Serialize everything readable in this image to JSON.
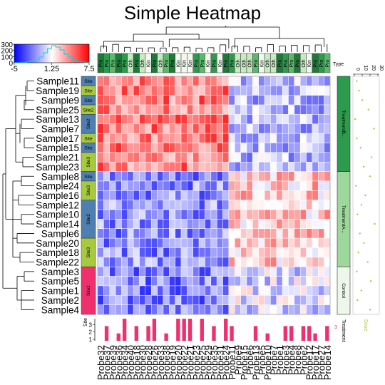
{
  "title": "Simple Heatmap",
  "colors": {
    "low": "#0000ff",
    "mid": "#ffffff",
    "high": "#ff0000"
  },
  "chart_data": {
    "type": "heatmap",
    "title": "Simple Heatmap",
    "color_key": {
      "ticks": [
        "-5",
        "1.25",
        "7.5"
      ],
      "hist_ticks": [
        "300",
        "200",
        "100",
        "0"
      ]
    },
    "columns": [
      "Probe32",
      "Probe37",
      "Probe39",
      "Probe36",
      "Probe34",
      "Probe40",
      "Probe18",
      "Probe30",
      "Probe28",
      "Probe26",
      "Probe33",
      "Probe38",
      "Probe19",
      "Probe20",
      "Probe22",
      "Probe21",
      "Probe23",
      "Probe25",
      "Probe29",
      "Probe35",
      "Probe31",
      "Probe24",
      "Probe11",
      "Probe9",
      "Probe15",
      "Probe6",
      "Probe13",
      "Probe5",
      "Probe10",
      "Probe7",
      "Probe1",
      "Probe3",
      "Probe4",
      "Probe8",
      "Probe2",
      "Probe12",
      "Probe17",
      "Probe27",
      "Probe14"
    ],
    "rows": [
      "Sample11",
      "Sample19",
      "Sample9",
      "Sample25",
      "Sample13",
      "Sample7",
      "Sample17",
      "Sample15",
      "Sample21",
      "Sample23",
      "Sample8",
      "Sample24",
      "Sample16",
      "Sample12",
      "Sample10",
      "Sample14",
      "Sample6",
      "Sample20",
      "Sample18",
      "Sample22",
      "Sample3",
      "Sample5",
      "Sample1",
      "Sample2",
      "Sample4"
    ],
    "column_type_labels": [
      "Pro",
      "Pro",
      "Pro",
      "Pro",
      "Pro",
      "Oth",
      "Pro",
      "Oth",
      "Kin",
      "Pro",
      "Oth",
      "Pro",
      "Pro",
      "Kin",
      "Kin",
      "Kin",
      "Pro",
      "Pro",
      "Kin",
      "Pro",
      "Kin",
      "Pro",
      "Pro",
      "Oth",
      "Oth",
      "Oth",
      "Pro",
      "Kin",
      "Oth",
      "Oth",
      "Pro",
      "Pro",
      "Pro",
      "Pro",
      "Oth",
      "Kin",
      "Pro",
      "Pro",
      "Pro"
    ],
    "type_label": "Type",
    "site_labels": {
      "group1": "Site",
      "group2": "Site",
      "group3": "Site",
      "group4": "Site2",
      "group5": "Site3",
      "group6": "Site2",
      "group7": "Site3",
      "group8": "Site1"
    },
    "treatment_labels": [
      "TreatmentB...",
      "TreatmentA...",
      "Control"
    ],
    "dose_axis_ticks": [
      "0",
      "10",
      "20",
      "30"
    ],
    "dose_values": [
      3,
      6,
      10,
      18,
      1,
      25,
      3,
      8,
      22,
      12,
      20,
      2,
      14,
      9,
      4,
      26,
      7,
      12,
      5,
      17,
      3,
      21,
      9,
      4,
      20
    ],
    "bottom_axis_labels": {
      "count_ticks": [
        "1",
        "2",
        "3"
      ],
      "site_label": "Site",
      "treatment_label": "Treatment",
      "dose_label": "Dose",
      "col_label_3": "3"
    },
    "column_bar_values": [
      0,
      2,
      0,
      1,
      3,
      0,
      2,
      0,
      2,
      3,
      0,
      1,
      0,
      3,
      3,
      3,
      0,
      3,
      0,
      2,
      0,
      3,
      2,
      0,
      0,
      0,
      2,
      0,
      1,
      0,
      0,
      2,
      2,
      0,
      2,
      2,
      1,
      0,
      2
    ]
  }
}
